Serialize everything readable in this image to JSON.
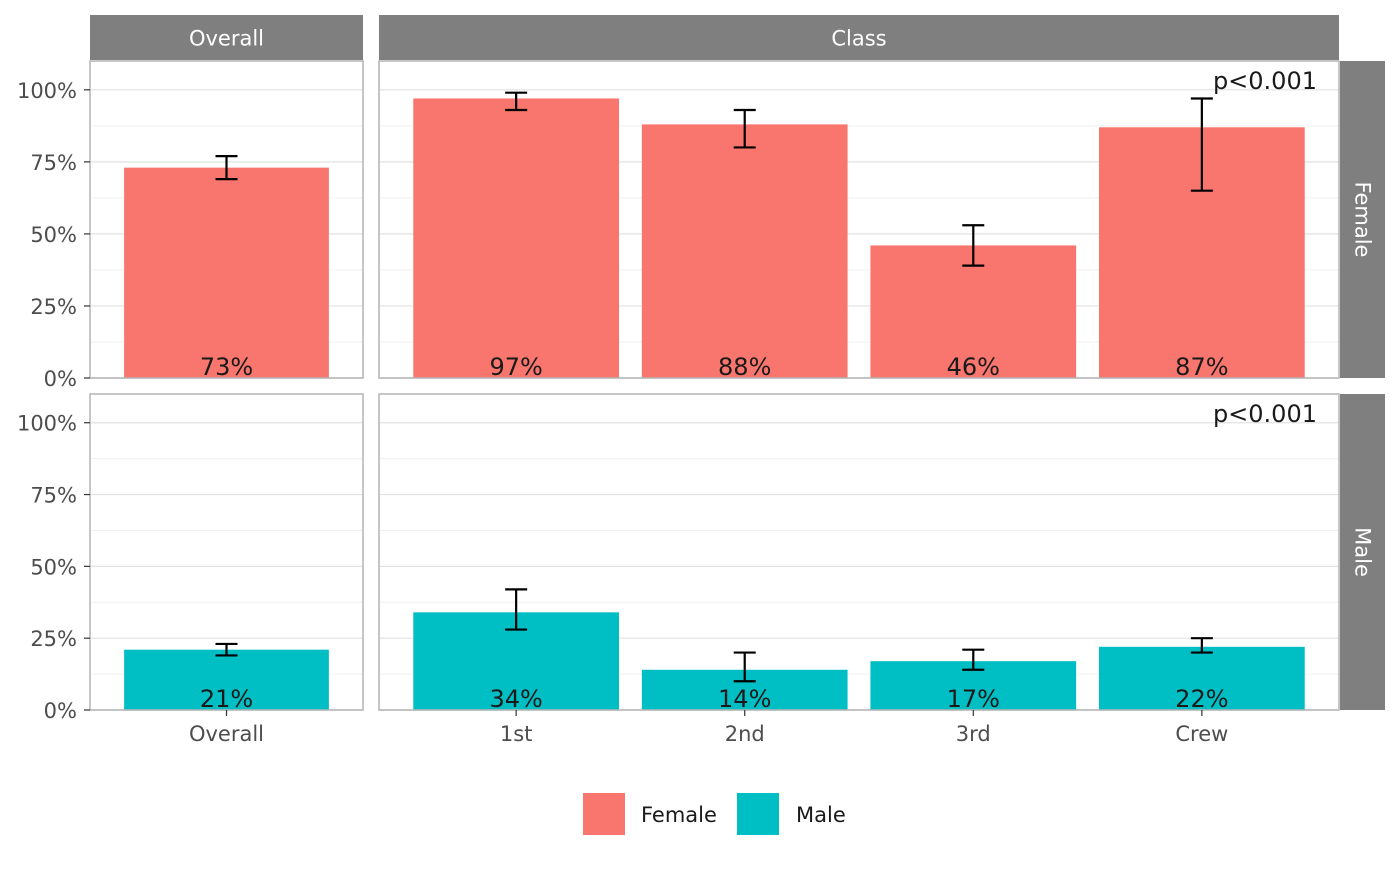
{
  "chart_data": {
    "type": "bar",
    "facets": {
      "columns": [
        "Overall",
        "Class"
      ],
      "rows": [
        "Female",
        "Male"
      ]
    },
    "y_ticks": [
      "0%",
      "25%",
      "50%",
      "75%",
      "100%"
    ],
    "ylim": [
      0,
      1.1
    ],
    "x_categories": {
      "Overall": [
        "Overall"
      ],
      "Class": [
        "1st",
        "2nd",
        "3rd",
        "Crew"
      ]
    },
    "series": [
      {
        "name": "Female",
        "color": "#F8766D",
        "panels": {
          "Overall": {
            "values": [
              0.73
            ],
            "labels": [
              "73%"
            ],
            "ci_low": [
              0.69
            ],
            "ci_high": [
              0.77
            ]
          },
          "Class": {
            "values": [
              0.97,
              0.88,
              0.46,
              0.87
            ],
            "labels": [
              "97%",
              "88%",
              "46%",
              "87%"
            ],
            "ci_low": [
              0.93,
              0.8,
              0.39,
              0.65
            ],
            "ci_high": [
              0.99,
              0.93,
              0.53,
              0.97
            ],
            "p_value": "p<0.001"
          }
        }
      },
      {
        "name": "Male",
        "color": "#00BFC4",
        "panels": {
          "Overall": {
            "values": [
              0.21
            ],
            "labels": [
              "21%"
            ],
            "ci_low": [
              0.19
            ],
            "ci_high": [
              0.23
            ]
          },
          "Class": {
            "values": [
              0.34,
              0.14,
              0.17,
              0.22
            ],
            "labels": [
              "34%",
              "14%",
              "17%",
              "22%"
            ],
            "ci_low": [
              0.28,
              0.1,
              0.14,
              0.2
            ],
            "ci_high": [
              0.42,
              0.2,
              0.21,
              0.25
            ],
            "p_value": "p<0.001"
          }
        }
      }
    ],
    "legend": {
      "position": "bottom",
      "entries": [
        "Female",
        "Male"
      ]
    },
    "grid": true,
    "error_bars": true
  }
}
